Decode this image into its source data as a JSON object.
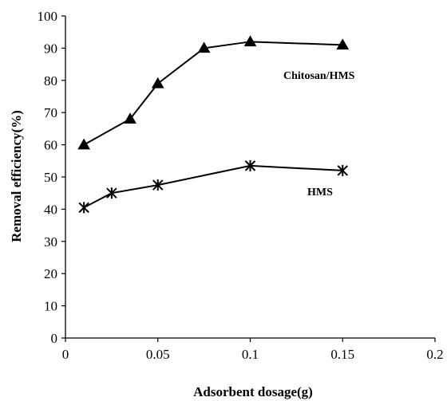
{
  "chart_data": {
    "type": "line",
    "title": "",
    "xlabel": "Adsorbent dosage(g)",
    "ylabel": "Removal efficiency(%)",
    "xlim": [
      0,
      0.2
    ],
    "ylim": [
      0,
      100
    ],
    "xticks": [
      0,
      0.05,
      0.1,
      0.15,
      0.2
    ],
    "xtick_labels": [
      "0",
      "0.05",
      "0.1",
      "0.15",
      "0.2"
    ],
    "yticks": [
      0,
      10,
      20,
      30,
      40,
      50,
      60,
      70,
      80,
      90,
      100
    ],
    "ytick_labels": [
      "0",
      "10",
      "20",
      "30",
      "40",
      "50",
      "60",
      "70",
      "80",
      "90",
      "100"
    ],
    "grid": false,
    "legend": "none",
    "series": [
      {
        "name": "Chitosan/HMS",
        "marker": "triangle",
        "color": "#000000",
        "x": [
          0.01,
          0.035,
          0.05,
          0.075,
          0.1,
          0.15
        ],
        "y": [
          60,
          68,
          79,
          90,
          92,
          91
        ]
      },
      {
        "name": "HMS",
        "marker": "asterisk",
        "color": "#000000",
        "x": [
          0.01,
          0.025,
          0.05,
          0.1,
          0.15
        ],
        "y": [
          40.5,
          45,
          47.5,
          53.5,
          52
        ]
      }
    ]
  }
}
